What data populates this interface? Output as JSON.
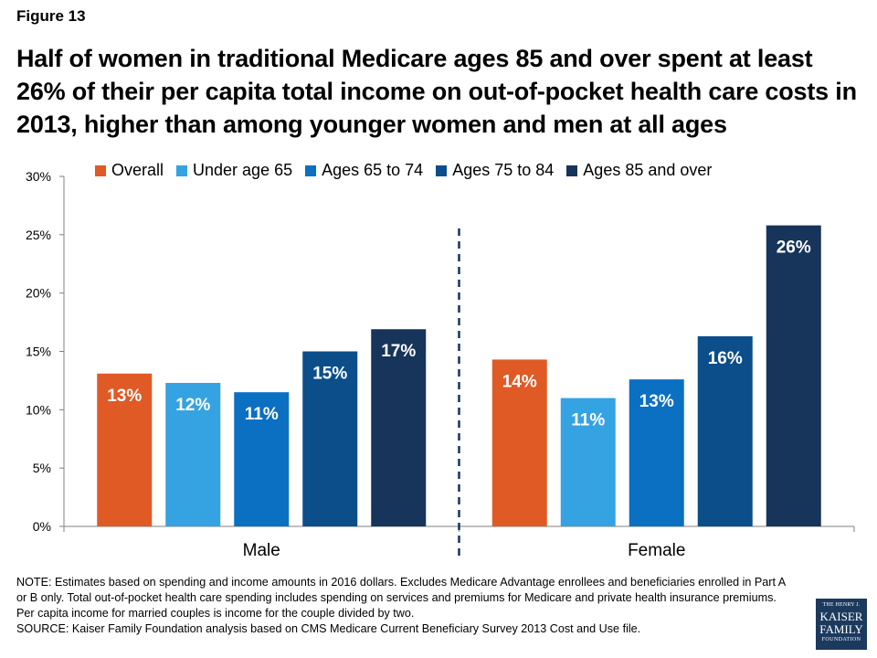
{
  "figure_label": "Figure 13",
  "title": "Half of women in traditional Medicare ages 85 and over spent at least 26% of their per capita total income on out-of-pocket health care costs in 2013, higher than among younger women and men at all ages",
  "legend": [
    {
      "name": "Overall",
      "color": "#e05a26"
    },
    {
      "name": "Under age 65",
      "color": "#35a2e2"
    },
    {
      "name": "Ages 65 to 74",
      "color": "#0b6fc2"
    },
    {
      "name": "Ages 75 to 84",
      "color": "#0b4e8a"
    },
    {
      "name": "Ages 85 and over",
      "color": "#17345a"
    }
  ],
  "chart_data": {
    "type": "bar",
    "categories": [
      "Male",
      "Female"
    ],
    "series": [
      {
        "name": "Overall",
        "values": [
          13.1,
          14.3
        ],
        "labels": [
          "13%",
          "14%"
        ]
      },
      {
        "name": "Under age 65",
        "values": [
          12.3,
          11.0
        ],
        "labels": [
          "12%",
          "11%"
        ]
      },
      {
        "name": "Ages 65 to 74",
        "values": [
          11.5,
          12.6
        ],
        "labels": [
          "11%",
          "13%"
        ]
      },
      {
        "name": "Ages 75 to 84",
        "values": [
          15.0,
          16.3
        ],
        "labels": [
          "15%",
          "16%"
        ]
      },
      {
        "name": "Ages 85 and over",
        "values": [
          16.9,
          25.8
        ],
        "labels": [
          "17%",
          "26%"
        ]
      }
    ],
    "ylim": [
      0,
      30
    ],
    "yticks": [
      "0%",
      "5%",
      "10%",
      "15%",
      "20%",
      "25%",
      "30%"
    ],
    "legend_position": "top",
    "grid": false
  },
  "note": "NOTE: Estimates based on spending and income amounts in 2016 dollars. Excludes Medicare Advantage enrollees and beneficiaries enrolled in Part A or B only. Total out-of-pocket health care spending includes spending on services and premiums for Medicare and private health insurance premiums. Per capita income for married couples is income for the couple divided by two.",
  "source": "SOURCE: Kaiser Family Foundation analysis based on CMS Medicare Current Beneficiary Survey 2013 Cost and Use file.",
  "logo": {
    "line1": "THE HENRY J.",
    "line2": "KAISER",
    "line3": "FAMILY",
    "line4": "FOUNDATION"
  }
}
